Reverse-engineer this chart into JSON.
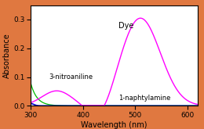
{
  "background_color": "#E07840",
  "plot_bg_color": "#FFFFFF",
  "xlabel": "Wavelength (nm)",
  "ylabel": "Absorbance",
  "xlim": [
    300,
    620
  ],
  "ylim": [
    0,
    0.35
  ],
  "yticks": [
    0.0,
    0.1,
    0.2,
    0.3
  ],
  "xticks": [
    300,
    400,
    500,
    600
  ],
  "label_3nitroaniline": "3-nitroaniline",
  "label_1naphtylamine": "1-naphtylamine",
  "label_dye": "Dye",
  "color_3nitroaniline": "#00BB00",
  "color_1naphtylamine": "#0000CC",
  "color_dye": "#FF00FF",
  "figsize": [
    2.6,
    1.65
  ],
  "dpi": 100
}
